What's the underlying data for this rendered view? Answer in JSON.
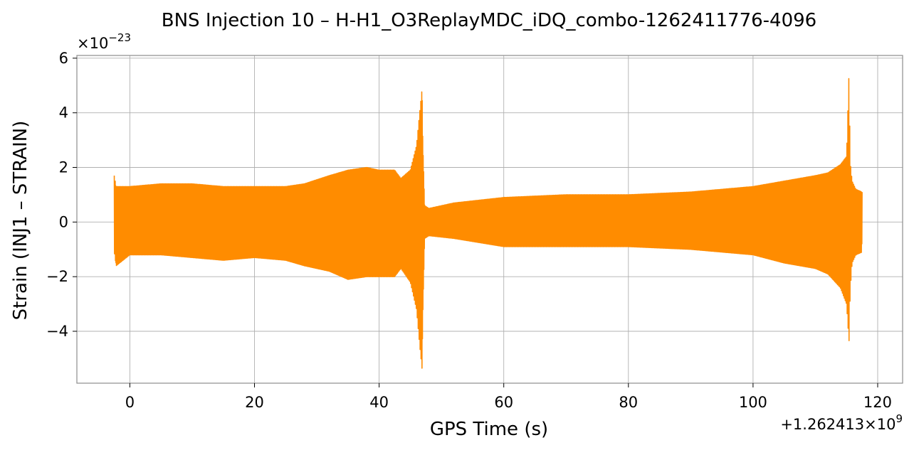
{
  "chart_data": {
    "type": "line",
    "title": "BNS Injection 10 – H-H1_O3ReplayMDC_iDQ_combo-1262411776-4096",
    "xlabel": "GPS Time (s)",
    "ylabel": "Strain (INJ1 – STRAIN)",
    "x_offset_label": "+1.262413×10",
    "x_offset_exp": "9",
    "y_multiplier_label": "×10",
    "y_multiplier_exp": "−23",
    "xlim": [
      -8.5,
      124
    ],
    "ylim": [
      -5.9,
      6.1
    ],
    "x_ticks": [
      0,
      20,
      40,
      60,
      80,
      100,
      120
    ],
    "x_tick_labels": [
      "0",
      "20",
      "40",
      "60",
      "80",
      "100",
      "120"
    ],
    "y_ticks": [
      -4,
      -2,
      0,
      2,
      4,
      6
    ],
    "y_tick_labels": [
      "−4",
      "−2",
      "0",
      "2",
      "4",
      "6"
    ],
    "grid": true,
    "series": [
      {
        "color": "#ff8c00",
        "envelope": {
          "x": [
            -2.5,
            -2.2,
            0,
            5,
            10,
            15,
            20,
            25,
            28,
            32,
            35,
            38,
            40,
            42.5,
            43.5,
            45,
            46,
            46.5,
            46.9,
            47.0,
            47.3,
            48,
            52,
            60,
            70,
            80,
            90,
            100,
            105,
            110,
            112,
            114,
            115,
            115.4,
            115.6,
            115.9,
            116.5,
            117.5
          ],
          "upper": [
            1.7,
            1.3,
            1.3,
            1.4,
            1.4,
            1.3,
            1.3,
            1.3,
            1.4,
            1.7,
            1.9,
            2.0,
            1.9,
            1.9,
            1.6,
            1.9,
            2.8,
            4.0,
            4.9,
            3.0,
            0.6,
            0.5,
            0.7,
            0.9,
            1.0,
            1.0,
            1.1,
            1.3,
            1.5,
            1.7,
            1.8,
            2.1,
            2.4,
            5.5,
            2.2,
            1.5,
            1.2,
            1.1
          ],
          "lower": [
            -1.1,
            -1.6,
            -1.2,
            -1.2,
            -1.3,
            -1.4,
            -1.3,
            -1.4,
            -1.6,
            -1.8,
            -2.1,
            -2.0,
            -2.0,
            -2.0,
            -1.7,
            -2.2,
            -3.2,
            -4.5,
            -5.4,
            -3.5,
            -0.6,
            -0.5,
            -0.6,
            -0.9,
            -0.9,
            -0.9,
            -1.0,
            -1.2,
            -1.5,
            -1.7,
            -1.9,
            -2.4,
            -3.0,
            -4.4,
            -2.5,
            -1.5,
            -1.2,
            -1.1
          ]
        }
      }
    ]
  }
}
